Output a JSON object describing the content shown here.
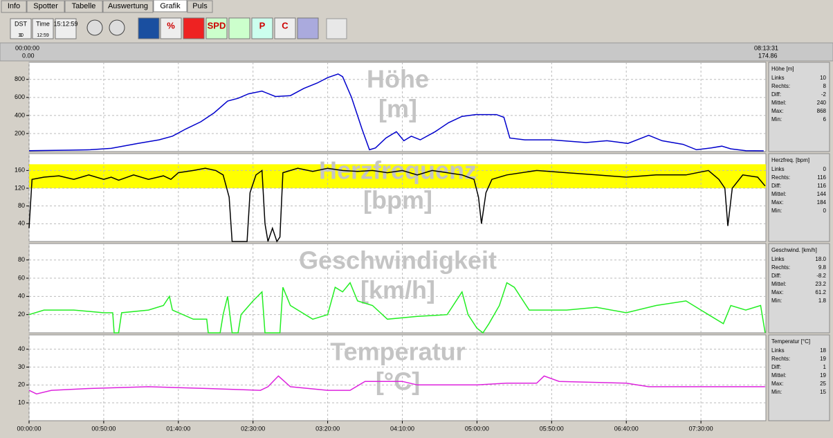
{
  "tabs": [
    "Info",
    "Spotter",
    "Tabelle",
    "Auswertung",
    "Grafik",
    "Puls"
  ],
  "toolbar": {
    "labels": [
      "DST",
      "1",
      "10",
      "Time",
      "12:59",
      "15:12:59",
      "%",
      "SPD",
      "P",
      "C"
    ]
  },
  "range": {
    "start_time": "00:00:00",
    "start_value": "0.00",
    "end_time": "08:13:31",
    "end_value": "174.86"
  },
  "time_axis": {
    "xlim": [
      0,
      493.5
    ],
    "xticks": [
      {
        "value": 0,
        "label": "00:00:00"
      },
      {
        "value": 50,
        "label": "00:50:00"
      },
      {
        "value": 100,
        "label": "01:40:00"
      },
      {
        "value": 150,
        "label": "02:30:00"
      },
      {
        "value": 200,
        "label": "03:20:00"
      },
      {
        "value": 250,
        "label": "04:10:00"
      },
      {
        "value": 300,
        "label": "05:00:00"
      },
      {
        "value": 350,
        "label": "05:50:00"
      },
      {
        "value": 400,
        "label": "06:40:00"
      },
      {
        "value": 450,
        "label": "07:30:00"
      }
    ]
  },
  "chart_data": [
    {
      "type": "line",
      "title": "Höhe",
      "unit": "[m]",
      "stats_title": "Höhe [m]",
      "color": "#0000cc",
      "ylim": [
        0,
        990
      ],
      "yticks": [
        200,
        400,
        600,
        800
      ],
      "grid": true,
      "stats": [
        {
          "label": "Links",
          "value": "10"
        },
        {
          "label": "Rechts:",
          "value": "8"
        },
        {
          "label": "Diff:",
          "value": "-2"
        },
        {
          "label": "Mittel:",
          "value": "240"
        },
        {
          "label": "Max:",
          "value": "868"
        },
        {
          "label": "Min:",
          "value": "6"
        }
      ],
      "x": [
        0,
        27,
        41,
        55,
        73,
        87,
        96,
        105,
        115,
        124,
        133,
        140,
        147,
        156,
        165,
        175,
        184,
        193,
        200,
        207,
        210,
        216,
        223,
        228,
        232,
        239,
        246,
        251,
        256,
        262,
        272,
        281,
        290,
        299,
        313,
        318,
        322,
        332,
        350,
        373,
        387,
        401,
        415,
        424,
        438,
        447,
        457,
        464,
        470,
        480,
        492
      ],
      "values": [
        10,
        15,
        20,
        35,
        90,
        130,
        170,
        250,
        330,
        430,
        560,
        590,
        640,
        670,
        610,
        620,
        700,
        760,
        820,
        860,
        830,
        600,
        250,
        20,
        40,
        150,
        220,
        120,
        170,
        130,
        220,
        320,
        390,
        410,
        410,
        380,
        150,
        130,
        130,
        100,
        120,
        90,
        180,
        120,
        80,
        20,
        40,
        60,
        30,
        10,
        8
      ]
    },
    {
      "type": "line",
      "title": "Herzfrequenz",
      "unit": "[bpm]",
      "stats_title": "Herzfreq. [bpm]",
      "color": "#000000",
      "ylim": [
        0,
        198
      ],
      "yticks": [
        40,
        80,
        120,
        160
      ],
      "grid": true,
      "zone": [
        120,
        174
      ],
      "zone_color": "#ffff00",
      "stats": [
        {
          "label": "Links",
          "value": "0"
        },
        {
          "label": "Rechts:",
          "value": "116"
        },
        {
          "label": "Diff:",
          "value": "116"
        },
        {
          "label": "Mittel:",
          "value": "144"
        },
        {
          "label": "Max:",
          "value": "184"
        },
        {
          "label": "Min:",
          "value": "0"
        }
      ],
      "x": [
        0,
        2,
        10,
        20,
        30,
        40,
        50,
        55,
        60,
        70,
        80,
        90,
        95,
        100,
        110,
        118,
        125,
        130,
        134,
        136,
        146,
        148,
        152,
        156,
        158,
        160,
        163,
        166,
        168,
        170,
        180,
        190,
        200,
        210,
        220,
        230,
        240,
        250,
        260,
        270,
        280,
        290,
        298,
        301,
        303,
        306,
        310,
        320,
        340,
        360,
        380,
        400,
        420,
        440,
        455,
        462,
        466,
        468,
        471,
        478,
        488,
        493
      ],
      "values": [
        30,
        140,
        145,
        148,
        140,
        150,
        140,
        145,
        138,
        150,
        140,
        148,
        140,
        155,
        160,
        165,
        160,
        150,
        100,
        0,
        0,
        110,
        150,
        160,
        40,
        0,
        30,
        0,
        10,
        155,
        165,
        158,
        165,
        160,
        158,
        160,
        155,
        160,
        150,
        160,
        155,
        150,
        140,
        100,
        40,
        110,
        140,
        150,
        160,
        155,
        150,
        145,
        150,
        150,
        160,
        140,
        120,
        35,
        120,
        150,
        145,
        125
      ]
    },
    {
      "type": "line",
      "title": "Geschwindigkeit",
      "unit": "[km/h]",
      "stats_title": "Geschwind. [km/h]",
      "color": "#22ee22",
      "ylim": [
        0,
        98
      ],
      "yticks": [
        20,
        40,
        60,
        80
      ],
      "grid": true,
      "stats": [
        {
          "label": "Links",
          "value": "18.0"
        },
        {
          "label": "Rechts:",
          "value": "9.8"
        },
        {
          "label": "Diff:",
          "value": "-8.2"
        },
        {
          "label": "Mittel:",
          "value": "23.2"
        },
        {
          "label": "Max:",
          "value": "61.2"
        },
        {
          "label": "Min:",
          "value": "1.8"
        }
      ],
      "x": [
        0,
        10,
        30,
        50,
        56,
        57,
        60,
        62,
        80,
        90,
        94,
        96,
        110,
        119,
        120,
        128,
        130,
        133,
        136,
        140,
        142,
        150,
        156,
        158,
        168,
        170,
        175,
        190,
        200,
        205,
        210,
        215,
        220,
        230,
        240,
        260,
        280,
        290,
        294,
        300,
        304,
        308,
        315,
        320,
        325,
        335,
        360,
        380,
        400,
        420,
        440,
        455,
        465,
        470,
        480,
        490,
        493
      ],
      "values": [
        20,
        25,
        25,
        22,
        22,
        0,
        0,
        22,
        25,
        30,
        40,
        25,
        15,
        15,
        0,
        0,
        20,
        40,
        0,
        0,
        20,
        35,
        45,
        0,
        0,
        50,
        30,
        15,
        20,
        50,
        45,
        55,
        35,
        30,
        15,
        18,
        20,
        45,
        20,
        5,
        0,
        10,
        30,
        55,
        50,
        25,
        25,
        28,
        22,
        30,
        35,
        20,
        10,
        30,
        25,
        30,
        0
      ]
    },
    {
      "type": "line",
      "title": "Temperatur",
      "unit": "[°C]",
      "stats_title": "Temperatur [°C]",
      "color": "#dd22dd",
      "ylim": [
        0,
        48
      ],
      "yticks": [
        10,
        20,
        30,
        40
      ],
      "grid": true,
      "stats": [
        {
          "label": "Links",
          "value": "18"
        },
        {
          "label": "Rechts:",
          "value": "19"
        },
        {
          "label": "Diff:",
          "value": "1"
        },
        {
          "label": "Mittel:",
          "value": "19"
        },
        {
          "label": "Max:",
          "value": "25"
        },
        {
          "label": "Min:",
          "value": "15"
        }
      ],
      "x": [
        0,
        5,
        15,
        40,
        80,
        120,
        155,
        160,
        167,
        175,
        200,
        215,
        225,
        250,
        260,
        300,
        320,
        340,
        345,
        355,
        400,
        415,
        493
      ],
      "values": [
        17,
        15,
        17,
        18,
        19,
        18,
        17,
        19,
        25,
        19,
        17,
        17,
        22,
        22,
        20,
        20,
        21,
        21,
        25,
        22,
        21,
        19,
        19
      ]
    }
  ]
}
